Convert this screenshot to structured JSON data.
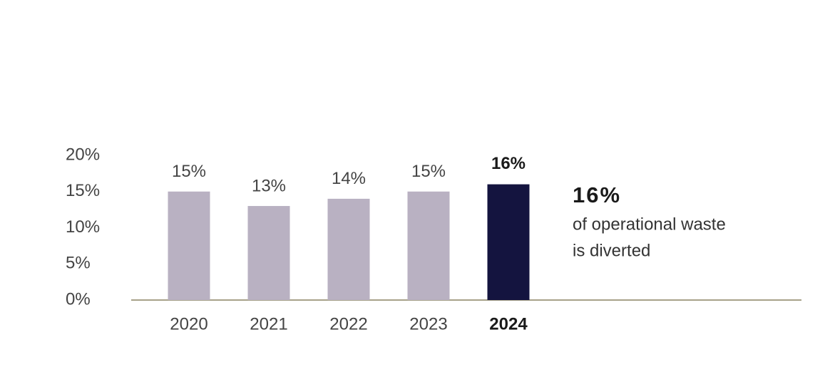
{
  "chart_data": {
    "type": "bar",
    "categories": [
      "2020",
      "2021",
      "2022",
      "2023",
      "2024"
    ],
    "values": [
      15,
      13,
      14,
      15,
      16
    ],
    "value_labels": [
      "15%",
      "13%",
      "14%",
      "15%",
      "16%"
    ],
    "colors": [
      "#b9b1c2",
      "#b9b1c2",
      "#b9b1c2",
      "#b9b1c2",
      "#14143f"
    ],
    "ylim": [
      0,
      20
    ],
    "yticks": [
      {
        "value": 0,
        "label": "0%"
      },
      {
        "value": 5,
        "label": "5%"
      },
      {
        "value": 10,
        "label": "10%"
      },
      {
        "value": 15,
        "label": "15%"
      },
      {
        "value": 20,
        "label": "20%"
      }
    ],
    "grid": false,
    "annotation": {
      "headline": "16%",
      "lines": [
        "of operational waste",
        "is diverted"
      ]
    }
  }
}
